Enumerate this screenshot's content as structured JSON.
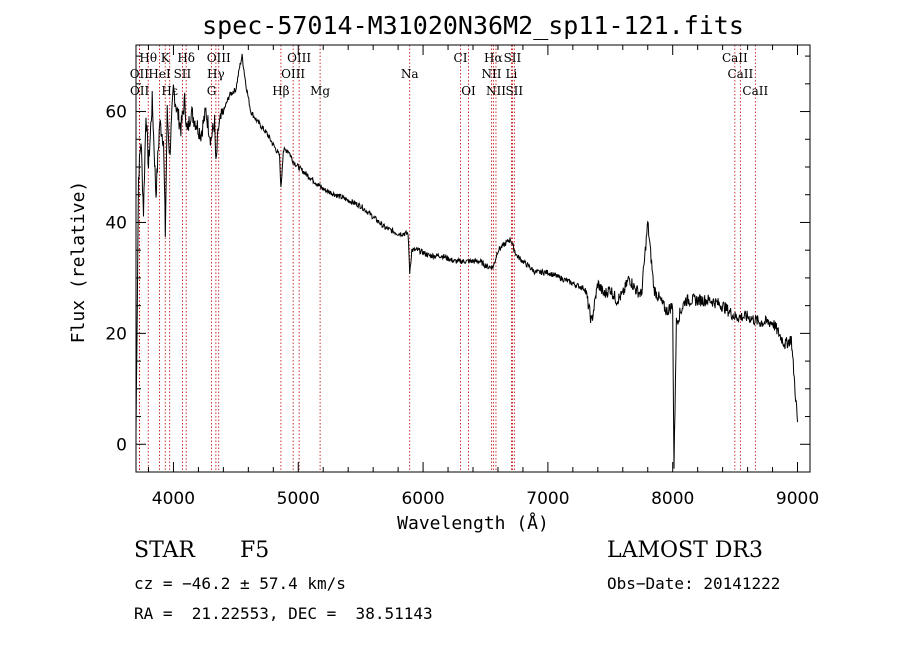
{
  "chart_data": {
    "type": "line",
    "title": "spec-57014-M31020N36M2_sp11-121.fits",
    "xlabel": "Wavelength (Å)",
    "ylabel": "Flux (relative)",
    "xlim": [
      3700,
      9100
    ],
    "ylim": [
      -5,
      72
    ],
    "xticks": [
      4000,
      5000,
      6000,
      7000,
      8000,
      9000
    ],
    "yticks": [
      0,
      20,
      40,
      60
    ],
    "series": [
      {
        "name": "spectrum",
        "x": [
          3700,
          3720,
          3740,
          3760,
          3780,
          3800,
          3830,
          3860,
          3890,
          3920,
          3935,
          3950,
          3970,
          4000,
          4030,
          4060,
          4090,
          4110,
          4140,
          4180,
          4220,
          4260,
          4300,
          4330,
          4340,
          4360,
          4400,
          4450,
          4500,
          4530,
          4550,
          4580,
          4620,
          4680,
          4750,
          4800,
          4850,
          4861,
          4880,
          4920,
          4960,
          5000,
          5050,
          5100,
          5150,
          5200,
          5300,
          5400,
          5500,
          5600,
          5700,
          5800,
          5880,
          5893,
          5910,
          5960,
          6050,
          6150,
          6250,
          6350,
          6450,
          6520,
          6563,
          6600,
          6650,
          6700,
          6750,
          6800,
          6900,
          7000,
          7100,
          7200,
          7300,
          7350,
          7400,
          7450,
          7500,
          7550,
          7600,
          7650,
          7700,
          7750,
          7800,
          7850,
          7900,
          7950,
          8000,
          8010,
          8030,
          8100,
          8200,
          8300,
          8400,
          8500,
          8600,
          8700,
          8800,
          8850,
          8900,
          8950,
          9000
        ],
        "y": [
          2,
          48,
          55,
          42,
          60,
          50,
          62,
          45,
          58,
          55,
          38,
          60,
          52,
          64,
          60,
          57,
          62,
          56,
          60,
          58,
          56,
          60,
          55,
          58,
          50,
          57,
          60,
          63,
          64,
          68,
          70,
          65,
          60,
          58,
          56,
          54,
          52,
          46,
          53,
          53,
          51,
          50,
          49,
          48,
          47,
          46,
          45,
          44,
          43,
          41,
          39,
          38,
          38,
          31,
          35,
          35,
          34,
          34,
          33,
          33,
          33,
          32,
          32,
          35,
          36,
          37,
          34,
          33,
          31,
          31,
          30,
          29,
          28,
          22,
          29,
          27,
          28,
          26,
          27,
          30,
          28,
          27,
          40,
          28,
          26,
          24,
          25,
          -4,
          22,
          26,
          26,
          26,
          25,
          23,
          23,
          22,
          22,
          20,
          18,
          19,
          4
        ]
      }
    ],
    "lines": [
      {
        "name": "Hθ",
        "w": 3798,
        "row": 0
      },
      {
        "name": "K",
        "w": 3934,
        "row": 0
      },
      {
        "name": "Hδ",
        "w": 4102,
        "row": 0
      },
      {
        "name": "OIII",
        "w": 4363,
        "row": 0
      },
      {
        "name": "OIII",
        "w": 5007,
        "row": 0
      },
      {
        "name": "CI",
        "w": 6300,
        "row": 0
      },
      {
        "name": "Hα",
        "w": 6563,
        "row": 0
      },
      {
        "name": "SII",
        "w": 6716,
        "row": 0
      },
      {
        "name": "CaII",
        "w": 8498,
        "row": 0
      },
      {
        "name": "OII",
        "w": 3727,
        "row": 1
      },
      {
        "name": "HeI",
        "w": 3889,
        "row": 1
      },
      {
        "name": "SII",
        "w": 4072,
        "row": 1
      },
      {
        "name": "Hγ",
        "w": 4340,
        "row": 1
      },
      {
        "name": "OIII",
        "w": 4959,
        "row": 1
      },
      {
        "name": "Na",
        "w": 5893,
        "row": 1
      },
      {
        "name": "NII",
        "w": 6548,
        "row": 1
      },
      {
        "name": "Li",
        "w": 6708,
        "row": 1
      },
      {
        "name": "CaII",
        "w": 8542,
        "row": 1
      },
      {
        "name": "OII",
        "w": 3729,
        "row": 2
      },
      {
        "name": "Hε",
        "w": 3970,
        "row": 2
      },
      {
        "name": "G",
        "w": 4305,
        "row": 2
      },
      {
        "name": "Hβ",
        "w": 4861,
        "row": 2
      },
      {
        "name": "Mg",
        "w": 5175,
        "row": 2
      },
      {
        "name": "OI",
        "w": 6364,
        "row": 2
      },
      {
        "name": "NII",
        "w": 6584,
        "row": 2
      },
      {
        "name": "SII",
        "w": 6731,
        "row": 2
      },
      {
        "name": "CaII",
        "w": 8662,
        "row": 2
      }
    ],
    "line_color": "#c00000",
    "spectrum_color": "#000000"
  },
  "info": {
    "class": "STAR",
    "subclass": "F5",
    "survey": "LAMOST DR3",
    "cz": "cz = −46.2 ± 57.4 km/s",
    "obs_date": "Obs−Date: 20141222",
    "radec": "RA =  21.22553, DEC =  38.51143"
  }
}
